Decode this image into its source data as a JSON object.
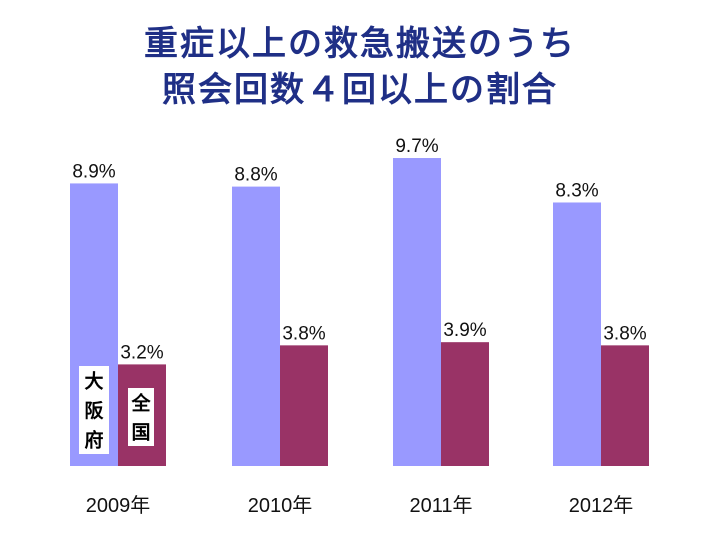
{
  "chart_data": {
    "type": "bar",
    "title_lines": [
      "重症以上の救急搬送のうち",
      "照会回数４回以上の割合"
    ],
    "categories": [
      "2009年",
      "2010年",
      "2011年",
      "2012年"
    ],
    "series": [
      {
        "name": "大阪府",
        "values": [
          8.9,
          8.8,
          9.7,
          8.3
        ],
        "labels": [
          "8.9%",
          "8.8%",
          "9.7%",
          "8.3%"
        ]
      },
      {
        "name": "全国",
        "values": [
          3.2,
          3.8,
          3.9,
          3.8
        ],
        "labels": [
          "3.2%",
          "3.8%",
          "3.9%",
          "3.8%"
        ]
      }
    ],
    "colors": [
      "#9999ff",
      "#993366"
    ],
    "ylim": [
      0,
      10
    ],
    "grid": false,
    "legend": "inside-first-bars"
  }
}
